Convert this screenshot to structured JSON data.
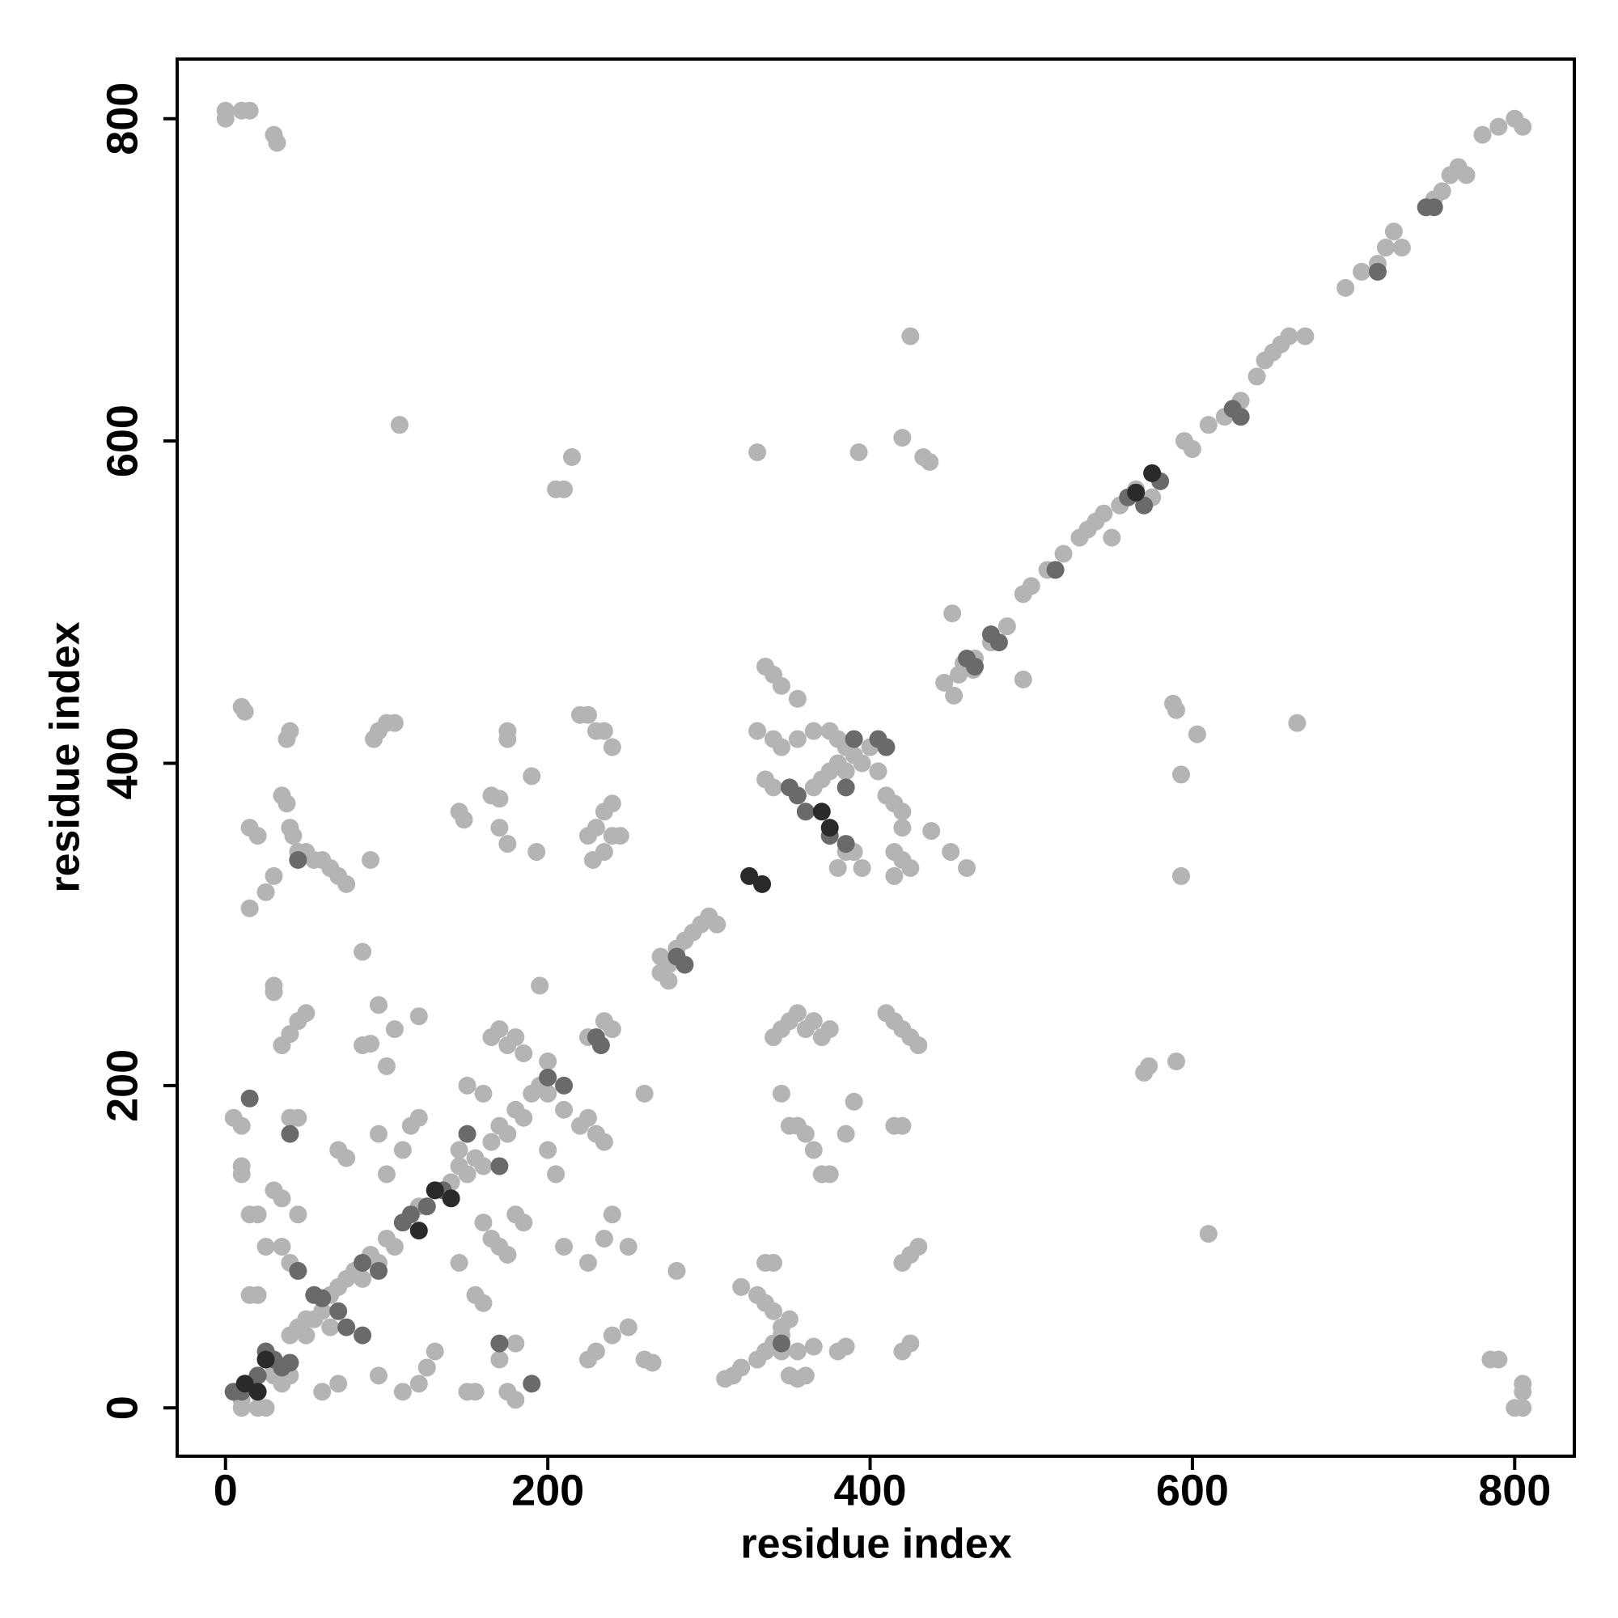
{
  "chart_data": {
    "type": "scatter",
    "xlabel": "residue index",
    "ylabel": "residue index",
    "xlim": [
      -30,
      837
    ],
    "ylim": [
      -30,
      837
    ],
    "xticks": [
      0,
      200,
      400,
      600,
      800
    ],
    "yticks": [
      0,
      200,
      400,
      600,
      800
    ],
    "grid": false,
    "series": [
      {
        "color": "#b4b4b4",
        "x": [
          5,
          10,
          15,
          20,
          25,
          30,
          40,
          50,
          60,
          65,
          70,
          75,
          80,
          85,
          90,
          95,
          100,
          105,
          110,
          120,
          130,
          140,
          145,
          150,
          155,
          160,
          165,
          170,
          175,
          180,
          185,
          190,
          195,
          200,
          270,
          275,
          280,
          285,
          290,
          295,
          300,
          305,
          270,
          275,
          365,
          370,
          375,
          380,
          385,
          390,
          395,
          400,
          405,
          455,
          465,
          475,
          485,
          495,
          500,
          510,
          520,
          530,
          535,
          540,
          545,
          550,
          555,
          565,
          575,
          595,
          600,
          610,
          620,
          630,
          640,
          645,
          650,
          655,
          660,
          670,
          695,
          705,
          715,
          720,
          725,
          730,
          745,
          750,
          755,
          760,
          765,
          770,
          780,
          790,
          800,
          805,
          0,
          0,
          10,
          15,
          30,
          32,
          805,
          800,
          805,
          805,
          785,
          790,
          108,
          215,
          210,
          205,
          330,
          393,
          420,
          425,
          433,
          437,
          665,
          593,
          590,
          588,
          603,
          593,
          590,
          570,
          573,
          610,
          446,
          452,
          458,
          464,
          451,
          495,
          10,
          12,
          40,
          38,
          35,
          38,
          15,
          20,
          40,
          42,
          45,
          50,
          55,
          60,
          65,
          70,
          75,
          30,
          25,
          15,
          90,
          95,
          100,
          92,
          105,
          145,
          148,
          165,
          170,
          170,
          175,
          175,
          175,
          190,
          193,
          220,
          225,
          230,
          235,
          240,
          225,
          230,
          235,
          240,
          240,
          245,
          228,
          235,
          85,
          30,
          30,
          35,
          40,
          45,
          50,
          95,
          105,
          90,
          85,
          100,
          120,
          195,
          225,
          235,
          240,
          260,
          5,
          10,
          10,
          10,
          15,
          20,
          25,
          30,
          35,
          45,
          35,
          40,
          15,
          20,
          40,
          45,
          70,
          75,
          95,
          100,
          110,
          115,
          120,
          145,
          150,
          160,
          165,
          170,
          175,
          180,
          185,
          200,
          210,
          220,
          225,
          230,
          235,
          160,
          165,
          170,
          175,
          185,
          180,
          200,
          205,
          210,
          225,
          235,
          240,
          250,
          155,
          160,
          145,
          280,
          60,
          70,
          95,
          110,
          120,
          125,
          130,
          150,
          155,
          170,
          175,
          180,
          180,
          225,
          230,
          240,
          250,
          260,
          265,
          310,
          315,
          320,
          330,
          335,
          340,
          345,
          350,
          355,
          360,
          345,
          355,
          365,
          380,
          385,
          320,
          330,
          335,
          340,
          345,
          350,
          335,
          340,
          345,
          350,
          355,
          360,
          365,
          370,
          375,
          385,
          390,
          420,
          425,
          420,
          425,
          430,
          415,
          420,
          340,
          345,
          350,
          355,
          360,
          365,
          370,
          375,
          410,
          415,
          420,
          425,
          430,
          335,
          340,
          345,
          355,
          330,
          340,
          345,
          355,
          365,
          375,
          380,
          385,
          335,
          340,
          385,
          390,
          380,
          395,
          410,
          415,
          420,
          420,
          415,
          420,
          425,
          415,
          438,
          450,
          460,
          55,
          65,
          50,
          45,
          30,
          35,
          20,
          25,
          40,
          10
        ],
        "y": [
          10,
          5,
          15,
          20,
          30,
          25,
          45,
          55,
          60,
          70,
          75,
          80,
          85,
          80,
          95,
          90,
          105,
          100,
          115,
          125,
          135,
          140,
          150,
          145,
          155,
          150,
          165,
          175,
          170,
          185,
          180,
          195,
          200,
          195,
          280,
          275,
          285,
          290,
          295,
          300,
          305,
          300,
          270,
          265,
          385,
          390,
          395,
          400,
          395,
          405,
          400,
          410,
          395,
          455,
          465,
          475,
          485,
          505,
          510,
          520,
          530,
          540,
          545,
          550,
          555,
          540,
          560,
          570,
          565,
          600,
          595,
          610,
          615,
          625,
          640,
          650,
          655,
          660,
          665,
          665,
          695,
          705,
          710,
          720,
          730,
          720,
          745,
          750,
          755,
          765,
          770,
          765,
          790,
          795,
          800,
          795,
          800,
          805,
          805,
          805,
          790,
          785,
          0,
          0,
          10,
          15,
          30,
          30,
          610,
          590,
          570,
          570,
          593,
          593,
          602,
          665,
          590,
          587,
          425,
          393,
          433,
          437,
          418,
          330,
          215,
          208,
          212,
          108,
          450,
          442,
          462,
          458,
          493,
          452,
          435,
          432,
          420,
          415,
          380,
          375,
          360,
          355,
          360,
          355,
          345,
          345,
          340,
          340,
          335,
          330,
          325,
          330,
          320,
          310,
          340,
          420,
          425,
          415,
          425,
          370,
          365,
          380,
          378,
          360,
          350,
          420,
          415,
          392,
          345,
          430,
          430,
          420,
          420,
          410,
          355,
          360,
          370,
          375,
          355,
          355,
          340,
          345,
          283,
          262,
          258,
          225,
          232,
          240,
          245,
          250,
          235,
          226,
          225,
          212,
          243,
          262,
          230,
          240,
          235,
          195,
          180,
          175,
          150,
          145,
          120,
          120,
          100,
          135,
          130,
          120,
          100,
          90,
          70,
          70,
          180,
          180,
          160,
          155,
          170,
          145,
          160,
          175,
          180,
          160,
          200,
          195,
          230,
          235,
          225,
          230,
          220,
          215,
          185,
          175,
          180,
          170,
          165,
          115,
          105,
          100,
          95,
          115,
          120,
          160,
          145,
          100,
          90,
          105,
          120,
          100,
          70,
          65,
          90,
          85,
          10,
          15,
          20,
          10,
          15,
          25,
          35,
          10,
          10,
          30,
          10,
          5,
          40,
          30,
          35,
          45,
          50,
          30,
          28,
          18,
          20,
          25,
          30,
          35,
          40,
          45,
          20,
          18,
          20,
          35,
          35,
          38,
          35,
          38,
          75,
          70,
          65,
          60,
          50,
          55,
          90,
          90,
          195,
          175,
          175,
          170,
          160,
          145,
          145,
          170,
          190,
          35,
          40,
          90,
          95,
          100,
          175,
          175,
          230,
          235,
          240,
          245,
          235,
          240,
          230,
          235,
          245,
          240,
          235,
          230,
          225,
          460,
          455,
          448,
          440,
          420,
          415,
          410,
          415,
          420,
          420,
          415,
          410,
          390,
          385,
          345,
          345,
          335,
          335,
          380,
          375,
          370,
          360,
          345,
          340,
          335,
          330,
          358,
          345,
          335,
          55,
          50,
          45,
          50,
          20,
          15,
          0,
          0,
          20,
          0
        ]
      },
      {
        "color": "#6a6a6a",
        "x": [
          15,
          40,
          45,
          45,
          40,
          20,
          25,
          30,
          35,
          55,
          60,
          70,
          75,
          85,
          85,
          95,
          110,
          115,
          125,
          135,
          150,
          170,
          170,
          190,
          200,
          210,
          230,
          233,
          280,
          285,
          350,
          355,
          360,
          375,
          385,
          390,
          405,
          410,
          385,
          460,
          465,
          475,
          480,
          515,
          560,
          570,
          580,
          625,
          630,
          745,
          750,
          715,
          345,
          10,
          5
        ],
        "y": [
          192,
          170,
          340,
          85,
          28,
          20,
          35,
          30,
          25,
          70,
          68,
          60,
          50,
          45,
          90,
          85,
          115,
          120,
          125,
          135,
          170,
          150,
          40,
          15,
          205,
          200,
          230,
          225,
          280,
          275,
          385,
          380,
          370,
          355,
          350,
          415,
          415,
          410,
          385,
          465,
          460,
          480,
          475,
          520,
          565,
          560,
          575,
          620,
          615,
          745,
          745,
          705,
          40,
          10,
          10
        ]
      },
      {
        "color": "#2a2a2a",
        "x": [
          325,
          333,
          370,
          375,
          140,
          130,
          120,
          12,
          20,
          25,
          575,
          565
        ],
        "y": [
          330,
          325,
          370,
          360,
          130,
          135,
          110,
          15,
          10,
          30,
          580,
          568
        ]
      }
    ]
  }
}
